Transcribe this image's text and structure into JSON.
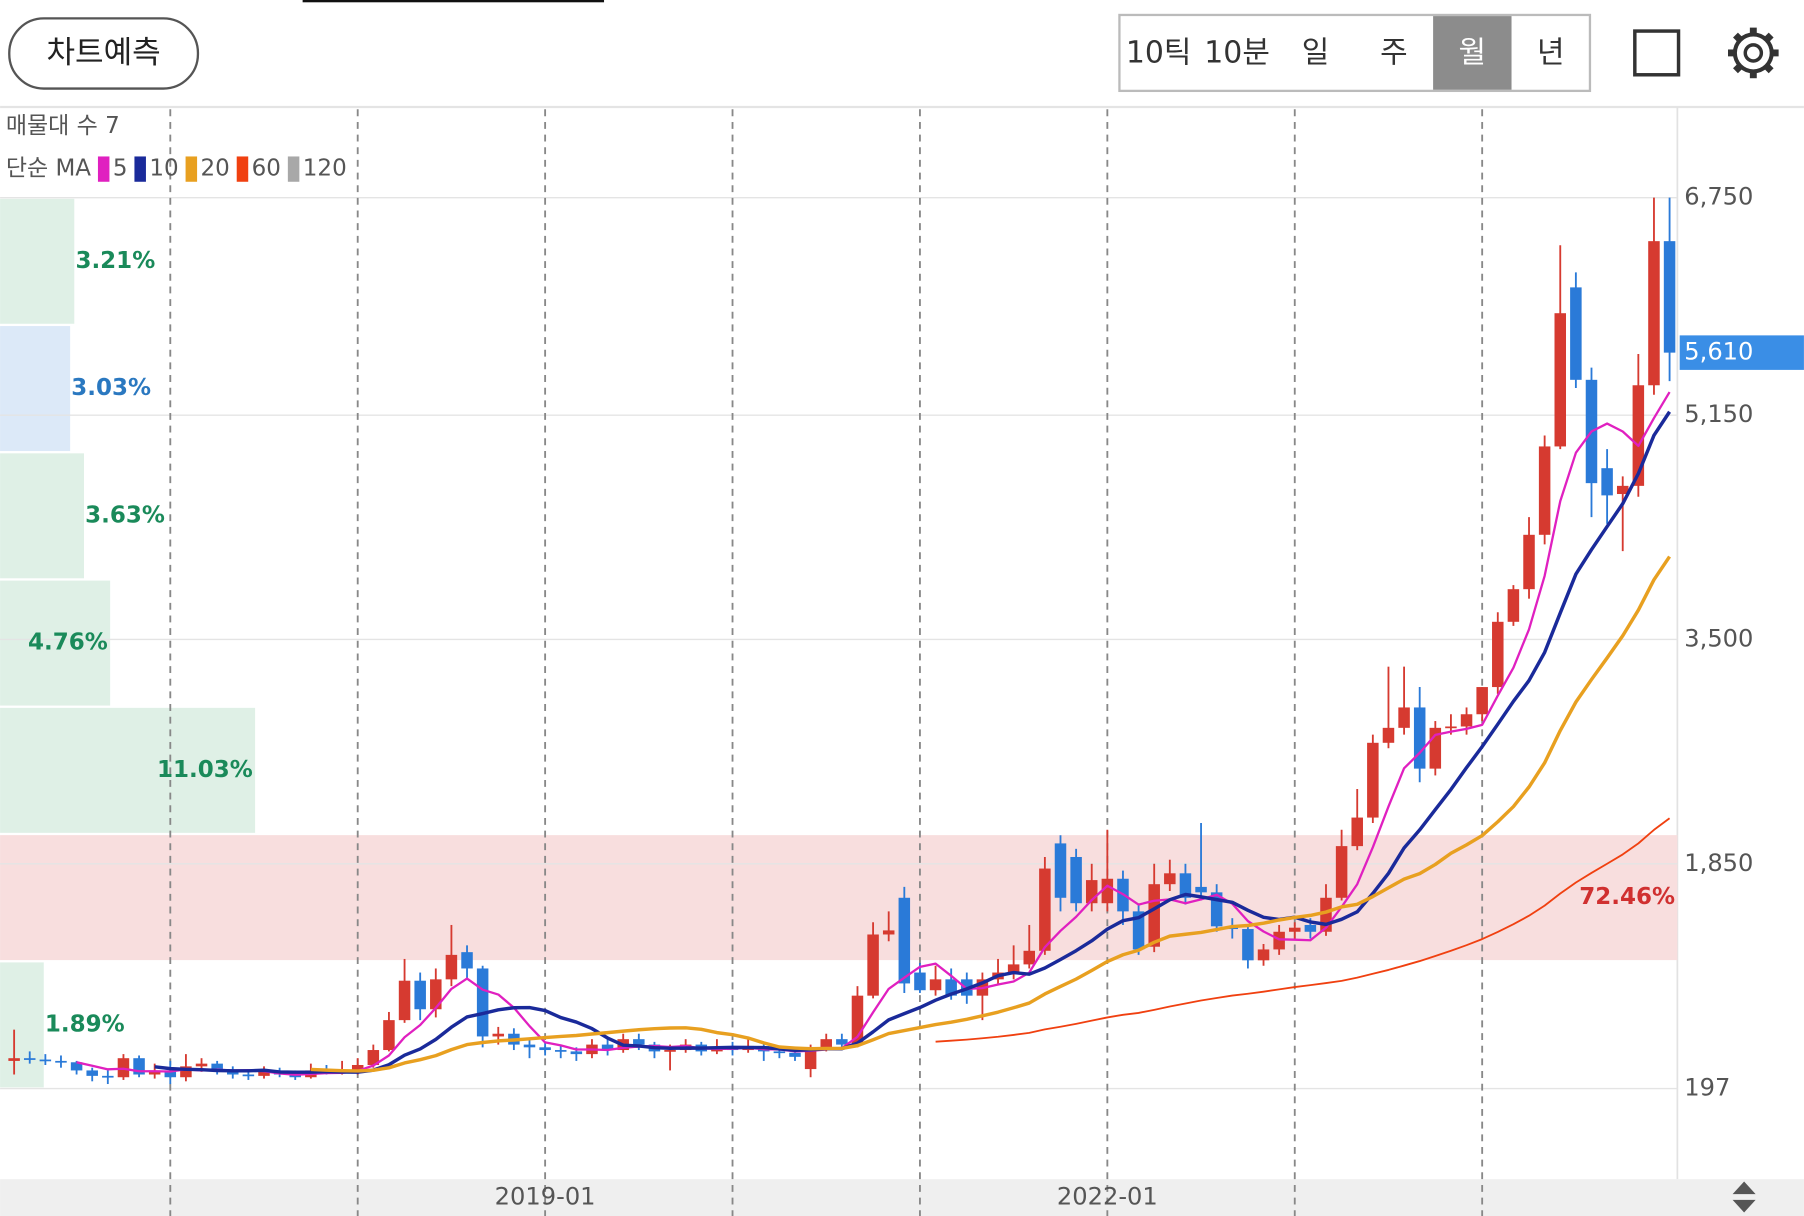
{
  "header": {
    "button": "차트예측",
    "tabs": [
      "10틱",
      "10분",
      "일",
      "주",
      "월",
      "년"
    ],
    "selected_tab": 4
  },
  "chart_data": {
    "type": "candlestick",
    "up_color": "#d63a30",
    "down_color": "#2a7ad8",
    "volume_profile": {
      "title": "매물대 수 7",
      "bands": [
        {
          "value": 1.89,
          "label": "1.89%"
        },
        {
          "value": 72.46,
          "label": "72.46%"
        },
        {
          "value": 11.03,
          "label": "11.03%"
        },
        {
          "value": 4.76,
          "label": "4.76%"
        },
        {
          "value": 3.63,
          "label": "3.63%"
        },
        {
          "value": 3.03,
          "label": "3.03%"
        },
        {
          "value": 3.21,
          "label": "3.21%"
        }
      ],
      "colors": {
        "normal": "#dff0e6",
        "max": "#f8dede",
        "current": "#dce9f8"
      },
      "label_colors": {
        "normal": "#1a8a5a",
        "max": "#d03030",
        "current": "#2a78c0"
      }
    },
    "ma": {
      "label": "단순 MA",
      "periods": [
        5,
        10,
        20,
        60,
        120
      ],
      "colors": [
        "#e020c0",
        "#1a2a9a",
        "#e8a020",
        "#f04010",
        "#a8a8a8"
      ]
    },
    "ohlc": [
      [
        400,
        630,
        300,
        420
      ],
      [
        420,
        470,
        380,
        410
      ],
      [
        410,
        450,
        370,
        400
      ],
      [
        400,
        440,
        350,
        390
      ],
      [
        390,
        400,
        300,
        330
      ],
      [
        330,
        350,
        250,
        290
      ],
      [
        290,
        330,
        230,
        280
      ],
      [
        280,
        450,
        260,
        420
      ],
      [
        420,
        440,
        280,
        300
      ],
      [
        300,
        380,
        270,
        330
      ],
      [
        330,
        400,
        230,
        280
      ],
      [
        280,
        450,
        250,
        360
      ],
      [
        360,
        420,
        320,
        380
      ],
      [
        380,
        400,
        300,
        330
      ],
      [
        330,
        360,
        270,
        300
      ],
      [
        300,
        340,
        260,
        290
      ],
      [
        290,
        360,
        270,
        320
      ],
      [
        320,
        350,
        280,
        300
      ],
      [
        300,
        330,
        260,
        280
      ],
      [
        280,
        380,
        270,
        330
      ],
      [
        330,
        370,
        300,
        320
      ],
      [
        320,
        400,
        300,
        330
      ],
      [
        330,
        420,
        300,
        370
      ],
      [
        370,
        520,
        350,
        480
      ],
      [
        480,
        760,
        470,
        700
      ],
      [
        700,
        1150,
        680,
        990
      ],
      [
        990,
        1050,
        700,
        780
      ],
      [
        780,
        1080,
        720,
        1000
      ],
      [
        1000,
        1400,
        950,
        1180
      ],
      [
        1200,
        1250,
        1000,
        1080
      ],
      [
        1080,
        1100,
        500,
        580
      ],
      [
        580,
        650,
        520,
        600
      ],
      [
        600,
        640,
        480,
        520
      ],
      [
        520,
        560,
        420,
        500
      ],
      [
        500,
        540,
        440,
        480
      ],
      [
        480,
        520,
        420,
        470
      ],
      [
        470,
        500,
        400,
        450
      ],
      [
        450,
        560,
        420,
        520
      ],
      [
        520,
        560,
        440,
        480
      ],
      [
        480,
        600,
        460,
        560
      ],
      [
        560,
        600,
        480,
        520
      ],
      [
        520,
        540,
        420,
        470
      ],
      [
        470,
        520,
        330,
        480
      ],
      [
        480,
        560,
        460,
        520
      ],
      [
        520,
        540,
        440,
        470
      ],
      [
        470,
        560,
        450,
        500
      ],
      [
        500,
        540,
        440,
        480
      ],
      [
        480,
        560,
        460,
        510
      ],
      [
        510,
        530,
        400,
        470
      ],
      [
        470,
        500,
        420,
        460
      ],
      [
        460,
        480,
        400,
        430
      ],
      [
        340,
        520,
        280,
        500
      ],
      [
        500,
        600,
        470,
        560
      ],
      [
        560,
        600,
        500,
        520
      ],
      [
        520,
        950,
        500,
        880
      ],
      [
        880,
        1420,
        860,
        1330
      ],
      [
        1330,
        1500,
        1280,
        1360
      ],
      [
        1600,
        1680,
        900,
        970
      ],
      [
        1050,
        1120,
        900,
        920
      ],
      [
        920,
        1100,
        880,
        1000
      ],
      [
        1000,
        1080,
        850,
        880
      ],
      [
        1000,
        1050,
        820,
        880
      ],
      [
        880,
        1050,
        700,
        1000
      ],
      [
        1000,
        1150,
        960,
        1050
      ],
      [
        1050,
        1250,
        1000,
        1110
      ],
      [
        1110,
        1400,
        1080,
        1210
      ],
      [
        1210,
        1900,
        1180,
        1815
      ],
      [
        2000,
        2060,
        1500,
        1600
      ],
      [
        1900,
        1960,
        1500,
        1560
      ],
      [
        1560,
        1850,
        1500,
        1730
      ],
      [
        1560,
        2100,
        1500,
        1740
      ],
      [
        1740,
        1800,
        1400,
        1500
      ],
      [
        1500,
        1550,
        1180,
        1220
      ],
      [
        1240,
        1850,
        1200,
        1700
      ],
      [
        1700,
        1880,
        1650,
        1780
      ],
      [
        1780,
        1850,
        1550,
        1600
      ],
      [
        1680,
        2150,
        1580,
        1640
      ],
      [
        1640,
        1700,
        1350,
        1390
      ],
      [
        1390,
        1450,
        1300,
        1370
      ],
      [
        1370,
        1400,
        1080,
        1140
      ],
      [
        1140,
        1260,
        1100,
        1220
      ],
      [
        1220,
        1400,
        1180,
        1350
      ],
      [
        1350,
        1420,
        1300,
        1380
      ],
      [
        1400,
        1450,
        1300,
        1350
      ],
      [
        1350,
        1700,
        1320,
        1600
      ],
      [
        1600,
        2100,
        1580,
        1980
      ],
      [
        1980,
        2400,
        1950,
        2190
      ],
      [
        2190,
        2800,
        2150,
        2740
      ],
      [
        2740,
        3300,
        2700,
        2850
      ],
      [
        2850,
        3300,
        2800,
        3000
      ],
      [
        3000,
        3150,
        2450,
        2550
      ],
      [
        2550,
        2900,
        2500,
        2850
      ],
      [
        2850,
        2950,
        2800,
        2860
      ],
      [
        2860,
        3000,
        2800,
        2950
      ],
      [
        2950,
        3150,
        2900,
        3150
      ],
      [
        3150,
        3700,
        3100,
        3630
      ],
      [
        3630,
        3900,
        3600,
        3870
      ],
      [
        3870,
        4400,
        3800,
        4270
      ],
      [
        4270,
        5000,
        4200,
        4920
      ],
      [
        4920,
        6400,
        4900,
        5900
      ],
      [
        6090,
        6200,
        5350,
        5410
      ],
      [
        5410,
        5500,
        4400,
        4650
      ],
      [
        4760,
        4900,
        4350,
        4560
      ],
      [
        4570,
        4700,
        4150,
        4630
      ],
      [
        4630,
        5600,
        4550,
        5370
      ],
      [
        5370,
        6750,
        5300,
        6430
      ],
      [
        6430,
        6750,
        5400,
        5610
      ]
    ],
    "xlim": [
      -0.9,
      106.5
    ],
    "xticks": [
      {
        "value": 34,
        "label": "2019-01"
      },
      {
        "value": 70,
        "label": "2022-01"
      }
    ],
    "xgrid": [
      10,
      22,
      34,
      46,
      58,
      70,
      82,
      94
    ],
    "ylim": [
      -470,
      7400
    ],
    "yticks": [
      197,
      {
        "value": 1850,
        "label": "1,850"
      },
      {
        "value": 3500,
        "label": "3,500"
      },
      {
        "value": 5150,
        "label": "5,150"
      },
      {
        "value": 6750,
        "label": "6,750"
      }
    ],
    "last_price": {
      "value": 5610,
      "label": "5,610"
    }
  }
}
